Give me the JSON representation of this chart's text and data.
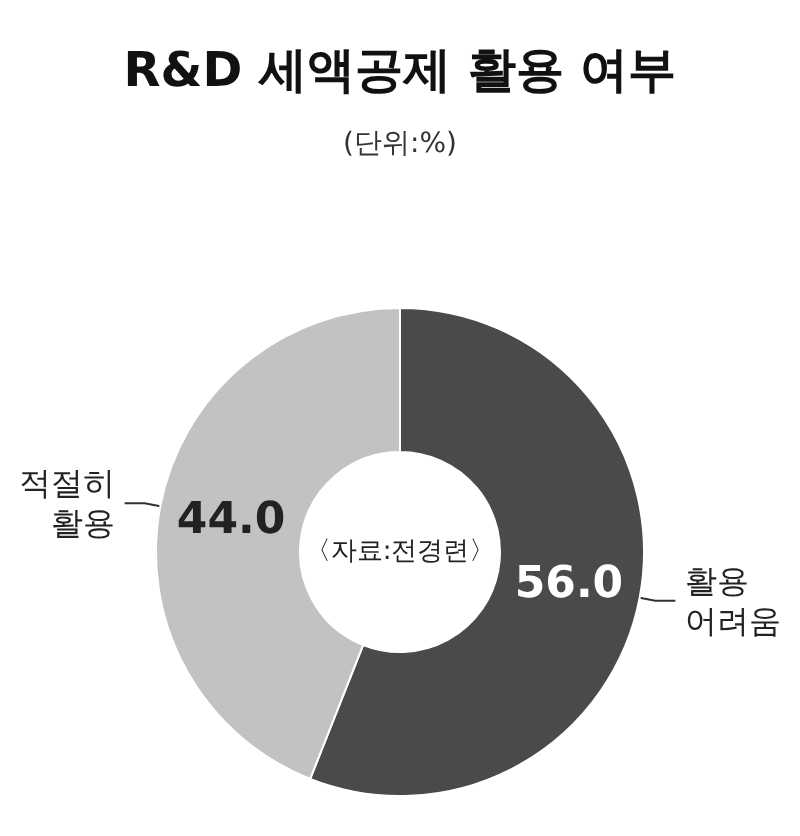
{
  "chart_data": {
    "type": "donut",
    "title": "R&D 세액공제 활용 여부",
    "subtitle": "(단위:%)",
    "categories": [
      "활용\n어려움",
      "적절히\n활용"
    ],
    "values": [
      56.0,
      44.0
    ],
    "value_labels": [
      "56.0",
      "44.0"
    ],
    "colors": [
      "#4a4a4a",
      "#c2c2c2"
    ],
    "annotations": [
      "〈자료:전경련〉"
    ],
    "legend": false
  }
}
